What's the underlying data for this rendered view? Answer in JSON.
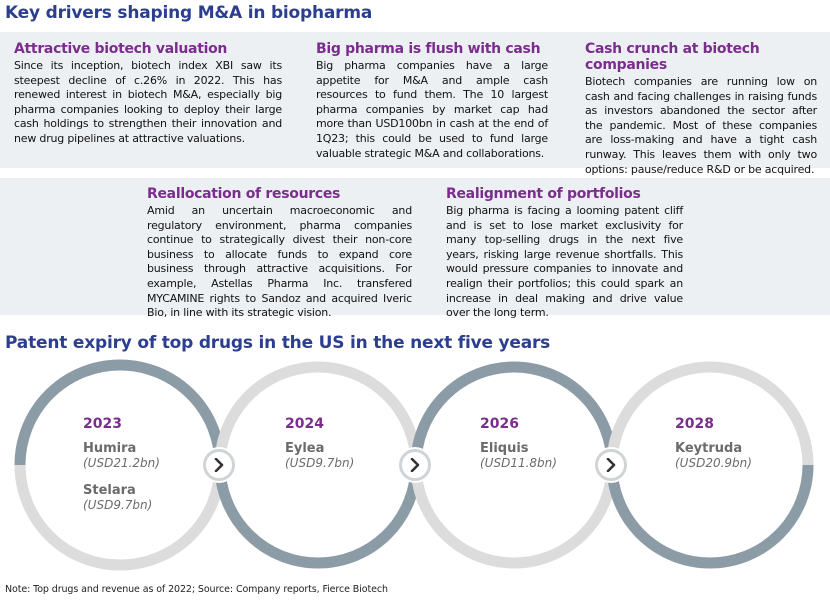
{
  "section1_title": "Key drivers shaping M&A in biopharma",
  "drivers": [
    {
      "heading": "Attractive biotech valuation",
      "body": "Since its inception, biotech index XBI saw its steepest decline of c.26% in 2022. This has renewed interest in biotech M&A, especially big pharma companies looking to deploy their large cash holdings to strengthen their innovation and new drug pipelines at attractive valuations."
    },
    {
      "heading": "Big pharma is flush with cash",
      "body": "Big pharma companies have a large appetite for M&A and ample cash resources to fund them. The 10 largest pharma companies by market cap had more than USD100bn in cash at the end of 1Q23; this could be used to fund large valuable strategic M&A and collaborations."
    },
    {
      "heading": "Cash crunch at biotech companies",
      "body": "Biotech companies are running low on cash and facing challenges in raising funds as investors abandoned the sector after the pandemic. Most of these companies are loss-making and have a tight cash runway. This leaves them with only two options: pause/reduce R&D or be acquired."
    },
    {
      "heading": "Reallocation of resources",
      "body": "Amid an uncertain macroeconomic and regulatory environment, pharma companies continue to strategically divest their non-core business to allocate funds to expand core business through attractive acquisitions. For example, Astellas Pharma Inc. transfered MYCAMINE rights to Sandoz and acquired Iveric Bio, in line with its strategic vision."
    },
    {
      "heading": "Realignment of portfolios",
      "body": "Big pharma is facing a looming patent cliff and is set to lose market exclusivity for many top-selling drugs in the next five years, risking large revenue shortfalls. This would pressure companies to innovate and realign their portfolios; this could spark an increase in deal making and drive value over the long term."
    }
  ],
  "section2_title": "Patent expiry of top drugs in the US in the next five years",
  "expiries": [
    {
      "year": "2023",
      "drugs": [
        {
          "name": "Humira",
          "revenue": "(USD21.2bn)"
        },
        {
          "name": "Stelara",
          "revenue": "(USD9.7bn)"
        }
      ]
    },
    {
      "year": "2024",
      "drugs": [
        {
          "name": "Eylea",
          "revenue": "(USD9.7bn)"
        }
      ]
    },
    {
      "year": "2026",
      "drugs": [
        {
          "name": "Eliquis",
          "revenue": "(USD11.8bn)"
        }
      ]
    },
    {
      "year": "2028",
      "drugs": [
        {
          "name": "Keytruda",
          "revenue": "(USD20.9bn)"
        }
      ]
    }
  ],
  "colors": {
    "title": "#2c3e8f",
    "heading": "#7b2d8e",
    "panel": "#edf0f3",
    "ring_dark": "#8c9ca6",
    "ring_light": "#dcdcdc"
  },
  "icons": {
    "arrow": "chevron-right-icon"
  },
  "note": "Note: Top drugs and revenue as of 2022; Source: Company reports, Fierce Biotech"
}
